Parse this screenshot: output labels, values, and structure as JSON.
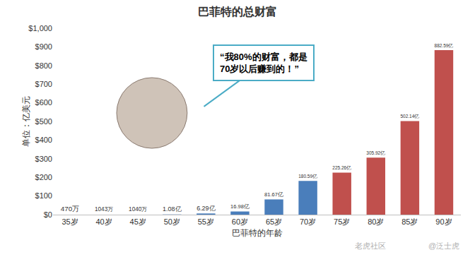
{
  "chart_data": {
    "type": "bar",
    "title": "巴菲特的总财富",
    "x_label": "巴菲特的年龄",
    "y_label": "单位：亿美元",
    "categories": [
      "35岁",
      "40岁",
      "45岁",
      "50岁",
      "55岁",
      "60岁",
      "65岁",
      "70岁",
      "75岁",
      "80岁",
      "85岁",
      "90岁"
    ],
    "values": [
      0.047,
      0.1043,
      0.104,
      1.08,
      6.29,
      16.98,
      81.67,
      180.59,
      225.26,
      305.92,
      502.14,
      882.59
    ],
    "value_labels": [
      "470万",
      "1043万",
      "1040万",
      "1.08亿",
      "6.29亿",
      "16.98亿",
      "81.67亿",
      "180.59亿",
      "225.26亿",
      "305.92亿",
      "502.14亿",
      "882.59亿"
    ],
    "colors": [
      "#4a7ebb",
      "#4a7ebb",
      "#4a7ebb",
      "#4a7ebb",
      "#4a7ebb",
      "#4a7ebb",
      "#4a7ebb",
      "#4a7ebb",
      "#c0504d",
      "#c0504d",
      "#c0504d",
      "#c0504d"
    ],
    "ylim": [
      0,
      1000
    ],
    "yticks": [
      {
        "value": 0,
        "label": "$0"
      },
      {
        "value": 100,
        "label": "$100"
      },
      {
        "value": 200,
        "label": "$200"
      },
      {
        "value": 300,
        "label": "$300"
      },
      {
        "value": 400,
        "label": "$400"
      },
      {
        "value": 500,
        "label": "$500"
      },
      {
        "value": 600,
        "label": "$600"
      },
      {
        "value": 700,
        "label": "$700"
      },
      {
        "value": 800,
        "label": "$800"
      },
      {
        "value": 900,
        "label": "$900"
      },
      {
        "value": 1000,
        "label": "$1,000"
      }
    ],
    "grid": false,
    "data_labels": true,
    "annotations": [
      [
        "“我80%的财富，都是",
        "70岁以后赚到的！”"
      ]
    ],
    "watermarks": [
      "老虎社区",
      "@泛士虎"
    ]
  }
}
